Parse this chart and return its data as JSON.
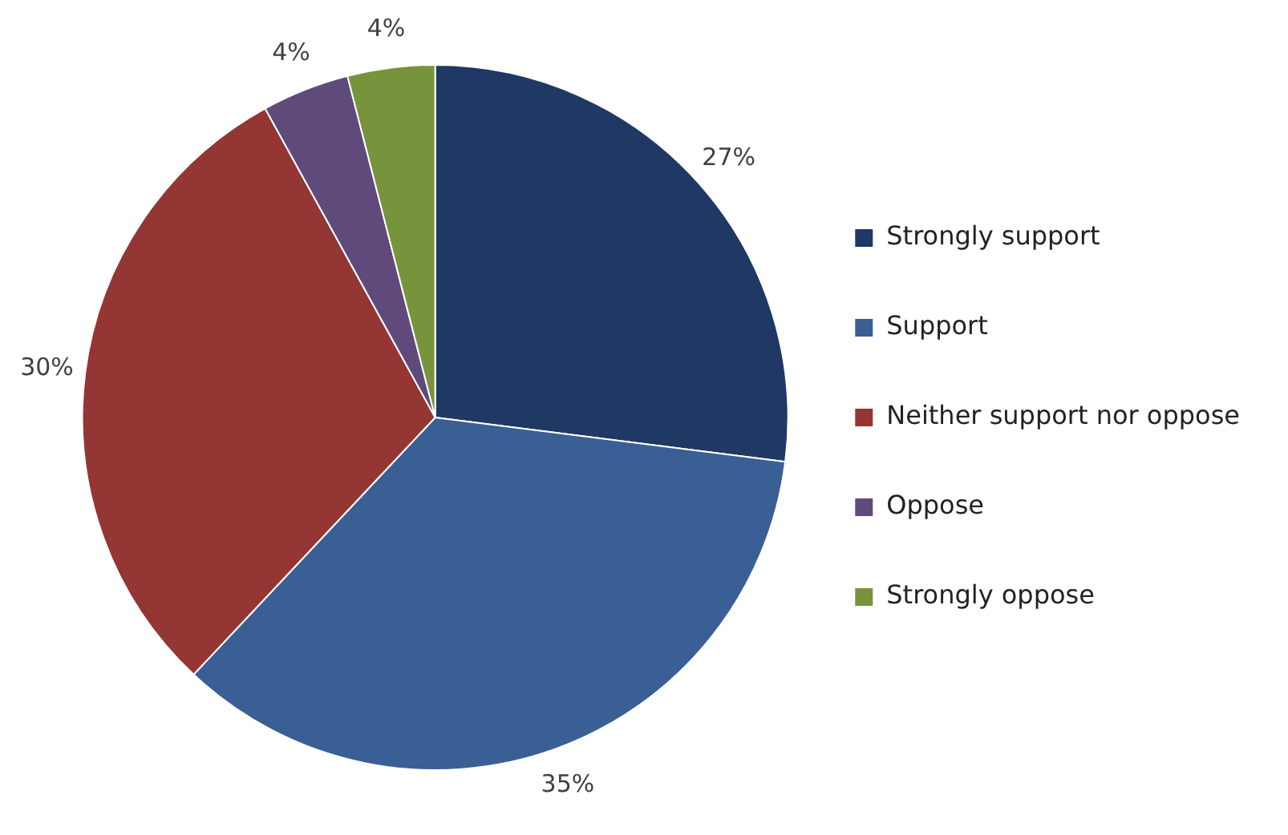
{
  "chart_data": {
    "type": "pie",
    "categories": [
      "Strongly support",
      "Support",
      "Neither support nor oppose",
      "Oppose",
      "Strongly oppose"
    ],
    "values": [
      27,
      35,
      30,
      4,
      4
    ],
    "colors": [
      "#1f3864",
      "#3a5f94",
      "#943634",
      "#5f4a7b",
      "#77933c"
    ],
    "value_labels": [
      "27%",
      "35%",
      "30%",
      "4%",
      "4%"
    ],
    "legend": "right"
  }
}
